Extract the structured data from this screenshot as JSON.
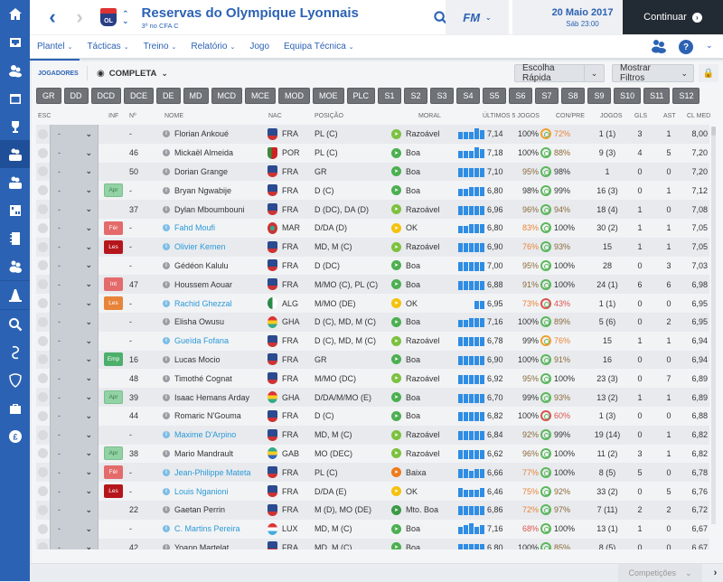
{
  "sidebar": {
    "items": [
      {
        "name": "home-icon",
        "active": false
      },
      {
        "name": "inbox-icon",
        "active": false
      },
      {
        "name": "squad-icon",
        "active": false
      },
      {
        "name": "calendar-icon",
        "active": false
      },
      {
        "name": "trophy-icon",
        "active": false
      },
      {
        "name": "reserves-squad-icon",
        "active": true,
        "label": "RES"
      },
      {
        "name": "u19-squad-icon",
        "active": false,
        "label": "S19"
      },
      {
        "name": "tactics-board-icon",
        "active": false
      },
      {
        "name": "notebook-icon",
        "active": false
      },
      {
        "name": "staff-icon",
        "active": false
      },
      {
        "name": "training-cone-icon",
        "active": false
      },
      {
        "name": "search-icon",
        "active": false
      },
      {
        "name": "transfers-icon",
        "active": false
      },
      {
        "name": "club-shield-icon",
        "active": false
      },
      {
        "name": "briefcase-icon",
        "active": false
      },
      {
        "name": "finances-icon",
        "active": false
      }
    ]
  },
  "header": {
    "club_name": "Reservas do Olympique Lyonnais",
    "club_subtitle": "3º no CFA C",
    "crest_text": "OL",
    "fm_label": "FM",
    "date": "20 Maio 2017",
    "time": "Sáb 23:00",
    "continue_label": "Continuar"
  },
  "subnav": {
    "tabs": [
      {
        "label": "Plantel",
        "dropdown": true,
        "active": true
      },
      {
        "label": "Tácticas",
        "dropdown": true
      },
      {
        "label": "Treino",
        "dropdown": true
      },
      {
        "label": "Relatório",
        "dropdown": true
      },
      {
        "label": "Jogo",
        "dropdown": false
      },
      {
        "label": "Equipa Técnica",
        "dropdown": true
      }
    ]
  },
  "toolbar": {
    "section_label": "JOGADORES",
    "view_label": "COMPLETA",
    "quick_pick_label": "Escolha Rápida",
    "filters_label": "Mostrar Filtros"
  },
  "position_filters": [
    "GR",
    "DD",
    "DCD",
    "DCE",
    "DE",
    "MD",
    "MCD",
    "MCE",
    "MOD",
    "MOE",
    "PLC",
    "S1",
    "S2",
    "S3",
    "S4",
    "S5",
    "S6",
    "S7",
    "S8",
    "S9",
    "S10",
    "S11",
    "S12"
  ],
  "columns": {
    "esc": "ESC",
    "inf": "INF",
    "num": "Nº",
    "nome": "NOME",
    "nac": "NAC",
    "posicao": "POSIÇÃO",
    "moral": "MORAL",
    "ultimos": "ÚLTIMOS 5 JOGOS",
    "conpre": "CON/PRE",
    "jogos": "JOGOS",
    "gls": "GLS",
    "ast": "AST",
    "clmed": "CL MED"
  },
  "players": [
    {
      "sel": "-",
      "inf": "",
      "num": "-",
      "name": "Florian Ankoué",
      "loan": false,
      "nac": "FRA",
      "pos": "PL (C)",
      "moral": "Razoável",
      "mclass": "m-raz",
      "bars": [
        8,
        8,
        8,
        12,
        10
      ],
      "form": "7,14",
      "cond": "100%",
      "condc": "",
      "sharp": "72%",
      "sharpc": "orange",
      "jogos": "1 (1)",
      "gls": "3",
      "ast": "1",
      "clmed": "8,00"
    },
    {
      "sel": "-",
      "inf": "",
      "num": "46",
      "name": "Mickaël Almeida",
      "loan": false,
      "nac": "POR",
      "pos": "PL (C)",
      "moral": "Boa",
      "mclass": "m-good",
      "bars": [
        8,
        8,
        8,
        12,
        10
      ],
      "form": "7,18",
      "cond": "100%",
      "condc": "",
      "sharp": "88%",
      "sharpc": "brown",
      "jogos": "9 (3)",
      "gls": "4",
      "ast": "5",
      "clmed": "7,20"
    },
    {
      "sel": "-",
      "inf": "",
      "num": "50",
      "name": "Dorian Grange",
      "loan": false,
      "nac": "FRA",
      "pos": "GR",
      "moral": "Boa",
      "mclass": "m-good",
      "bars": [
        10,
        10,
        10,
        10,
        10
      ],
      "form": "7,10",
      "cond": "95%",
      "condc": "brown",
      "sharp": "98%",
      "sharpc": "",
      "jogos": "1",
      "gls": "0",
      "ast": "0",
      "clmed": "7,20"
    },
    {
      "sel": "-",
      "inf": "Apr",
      "infc": "b-apr",
      "num": "-",
      "name": "Bryan Ngwabije",
      "loan": false,
      "nac": "FRA",
      "pos": "D (C)",
      "moral": "Boa",
      "mclass": "m-good",
      "bars": [
        8,
        8,
        10,
        10,
        10
      ],
      "form": "6,80",
      "cond": "98%",
      "condc": "",
      "sharp": "99%",
      "sharpc": "",
      "jogos": "16 (3)",
      "gls": "0",
      "ast": "1",
      "clmed": "7,12"
    },
    {
      "sel": "-",
      "inf": "",
      "num": "37",
      "name": "Dylan Mboumbouni",
      "loan": false,
      "nac": "FRA",
      "pos": "D (DC), DA (D)",
      "moral": "Razoável",
      "mclass": "m-raz",
      "bars": [
        10,
        10,
        10,
        10,
        10
      ],
      "form": "6,96",
      "cond": "96%",
      "condc": "brown",
      "sharp": "94%",
      "sharpc": "brown",
      "jogos": "18 (4)",
      "gls": "1",
      "ast": "0",
      "clmed": "7,08"
    },
    {
      "sel": "-",
      "inf": "Fér",
      "infc": "b-fer",
      "num": "-",
      "name": "Fahd Moufi",
      "loan": true,
      "nac": "MAR",
      "pos": "D/DA (D)",
      "moral": "OK",
      "mclass": "m-ok",
      "bars": [
        8,
        8,
        10,
        10,
        10
      ],
      "form": "6,80",
      "cond": "83%",
      "condc": "orange",
      "sharp": "100%",
      "sharpc": "",
      "jogos": "30 (2)",
      "gls": "1",
      "ast": "1",
      "clmed": "7,05"
    },
    {
      "sel": "-",
      "inf": "Les",
      "infc": "b-les",
      "num": "-",
      "name": "Olivier Kemen",
      "loan": true,
      "nac": "FRA",
      "pos": "MD, M (C)",
      "moral": "Razoável",
      "mclass": "m-raz",
      "bars": [
        10,
        10,
        10,
        10,
        10
      ],
      "form": "6,90",
      "cond": "76%",
      "condc": "orange",
      "sharp": "93%",
      "sharpc": "brown",
      "jogos": "15",
      "gls": "1",
      "ast": "1",
      "clmed": "7,05"
    },
    {
      "sel": "-",
      "inf": "",
      "num": "-",
      "name": "Gédéon Kalulu",
      "loan": false,
      "nac": "FRA",
      "pos": "D (DC)",
      "moral": "Boa",
      "mclass": "m-good",
      "bars": [
        10,
        10,
        10,
        10,
        10
      ],
      "form": "7,00",
      "cond": "95%",
      "condc": "brown",
      "sharp": "100%",
      "sharpc": "",
      "jogos": "28",
      "gls": "0",
      "ast": "3",
      "clmed": "7,03"
    },
    {
      "sel": "-",
      "inf": "Int",
      "infc": "b-int",
      "num": "47",
      "name": "Houssem Aouar",
      "loan": false,
      "nac": "FRA",
      "pos": "M/MO (C), PL (C)",
      "moral": "Boa",
      "mclass": "m-good",
      "bars": [
        10,
        10,
        10,
        10,
        10
      ],
      "form": "6,88",
      "cond": "91%",
      "condc": "brown",
      "sharp": "100%",
      "sharpc": "",
      "jogos": "24 (1)",
      "gls": "6",
      "ast": "6",
      "clmed": "6,98"
    },
    {
      "sel": "-",
      "inf": "Les",
      "infc": "b-les2",
      "num": "-",
      "name": "Rachid Ghezzal",
      "loan": true,
      "nac": "ALG",
      "pos": "M/MO (DE)",
      "moral": "OK",
      "mclass": "m-ok",
      "bars": [
        0,
        0,
        0,
        9,
        9
      ],
      "form": "6,95",
      "cond": "73%",
      "condc": "orange",
      "sharp": "43%",
      "sharpc": "red",
      "jogos": "1 (1)",
      "gls": "0",
      "ast": "0",
      "clmed": "6,95"
    },
    {
      "sel": "-",
      "inf": "",
      "num": "-",
      "name": "Elisha Owusu",
      "loan": false,
      "nac": "GHA",
      "pos": "D (C), MD, M (C)",
      "moral": "Boa",
      "mclass": "m-good",
      "bars": [
        8,
        8,
        10,
        10,
        10
      ],
      "form": "7,16",
      "cond": "100%",
      "condc": "",
      "sharp": "89%",
      "sharpc": "brown",
      "jogos": "5 (6)",
      "gls": "0",
      "ast": "2",
      "clmed": "6,95"
    },
    {
      "sel": "-",
      "inf": "",
      "num": "-",
      "name": "Gueïda Fofana",
      "loan": true,
      "nac": "FRA",
      "pos": "D (C), MD, M (C)",
      "moral": "Razoável",
      "mclass": "m-raz",
      "bars": [
        10,
        10,
        10,
        10,
        10
      ],
      "form": "6,78",
      "cond": "99%",
      "condc": "",
      "sharp": "76%",
      "sharpc": "orange",
      "jogos": "15",
      "gls": "1",
      "ast": "1",
      "clmed": "6,94"
    },
    {
      "sel": "-",
      "inf": "Emp",
      "infc": "b-emp",
      "num": "16",
      "name": "Lucas Mocio",
      "loan": false,
      "nac": "FRA",
      "pos": "GR",
      "moral": "Boa",
      "mclass": "m-good",
      "bars": [
        10,
        10,
        10,
        10,
        10
      ],
      "form": "6,90",
      "cond": "100%",
      "condc": "",
      "sharp": "91%",
      "sharpc": "brown",
      "jogos": "16",
      "gls": "0",
      "ast": "0",
      "clmed": "6,94"
    },
    {
      "sel": "-",
      "inf": "",
      "num": "48",
      "name": "Timothé Cognat",
      "loan": false,
      "nac": "FRA",
      "pos": "M/MO (DC)",
      "moral": "Razoável",
      "mclass": "m-raz",
      "bars": [
        10,
        10,
        10,
        10,
        10
      ],
      "form": "6,92",
      "cond": "95%",
      "condc": "brown",
      "sharp": "100%",
      "sharpc": "",
      "jogos": "23 (3)",
      "gls": "0",
      "ast": "7",
      "clmed": "6,89"
    },
    {
      "sel": "-",
      "inf": "Apr",
      "infc": "b-apr",
      "num": "39",
      "name": "Isaac Hemans Arday",
      "loan": false,
      "nac": "GHA",
      "pos": "D/DA/M/MO (E)",
      "moral": "Boa",
      "mclass": "m-good",
      "bars": [
        10,
        10,
        10,
        10,
        10
      ],
      "form": "6,70",
      "cond": "99%",
      "condc": "",
      "sharp": "93%",
      "sharpc": "brown",
      "jogos": "13 (2)",
      "gls": "1",
      "ast": "1",
      "clmed": "6,89"
    },
    {
      "sel": "-",
      "inf": "",
      "num": "44",
      "name": "Romaric N'Gouma",
      "loan": false,
      "nac": "FRA",
      "pos": "D (C)",
      "moral": "Boa",
      "mclass": "m-good",
      "bars": [
        10,
        10,
        10,
        10,
        10
      ],
      "form": "6,82",
      "cond": "100%",
      "condc": "",
      "sharp": "60%",
      "sharpc": "red",
      "jogos": "1 (3)",
      "gls": "0",
      "ast": "0",
      "clmed": "6,88"
    },
    {
      "sel": "-",
      "inf": "",
      "num": "-",
      "name": "Maxime D'Arpino",
      "loan": true,
      "nac": "FRA",
      "pos": "MD, M (C)",
      "moral": "Razoável",
      "mclass": "m-raz",
      "bars": [
        10,
        10,
        10,
        10,
        10
      ],
      "form": "6,84",
      "cond": "92%",
      "condc": "brown",
      "sharp": "99%",
      "sharpc": "",
      "jogos": "19 (14)",
      "gls": "0",
      "ast": "1",
      "clmed": "6,82"
    },
    {
      "sel": "-",
      "inf": "Apr",
      "infc": "b-apr",
      "num": "38",
      "name": "Mario Mandrault",
      "loan": false,
      "nac": "GAB",
      "pos": "MO (DEC)",
      "moral": "Razoável",
      "mclass": "m-raz",
      "bars": [
        10,
        10,
        10,
        10,
        10
      ],
      "form": "6,62",
      "cond": "96%",
      "condc": "brown",
      "sharp": "100%",
      "sharpc": "",
      "jogos": "11 (2)",
      "gls": "3",
      "ast": "1",
      "clmed": "6,82"
    },
    {
      "sel": "-",
      "inf": "Fér",
      "infc": "b-fer",
      "num": "-",
      "name": "Jean-Philippe Mateta",
      "loan": true,
      "nac": "FRA",
      "pos": "PL (C)",
      "moral": "Baixa",
      "mclass": "m-low",
      "bars": [
        10,
        10,
        8,
        10,
        10
      ],
      "form": "6,66",
      "cond": "77%",
      "condc": "orange",
      "sharp": "100%",
      "sharpc": "",
      "jogos": "8 (5)",
      "gls": "5",
      "ast": "0",
      "clmed": "6,78"
    },
    {
      "sel": "-",
      "inf": "Les",
      "infc": "b-les",
      "num": "-",
      "name": "Louis Nganioni",
      "loan": true,
      "nac": "FRA",
      "pos": "D/DA (E)",
      "moral": "OK",
      "mclass": "m-ok",
      "bars": [
        10,
        8,
        8,
        8,
        10
      ],
      "form": "6,46",
      "cond": "75%",
      "condc": "orange",
      "sharp": "92%",
      "sharpc": "brown",
      "jogos": "33 (2)",
      "gls": "0",
      "ast": "5",
      "clmed": "6,76"
    },
    {
      "sel": "-",
      "inf": "",
      "num": "22",
      "name": "Gaetan Perrin",
      "loan": false,
      "nac": "FRA",
      "pos": "M (D), MO (DE)",
      "moral": "Mto. Boa",
      "mclass": "m-vgood",
      "bars": [
        10,
        10,
        10,
        10,
        10
      ],
      "form": "6,86",
      "cond": "72%",
      "condc": "orange",
      "sharp": "97%",
      "sharpc": "brown",
      "jogos": "7 (11)",
      "gls": "2",
      "ast": "2",
      "clmed": "6,72"
    },
    {
      "sel": "-",
      "inf": "",
      "num": "-",
      "name": "C. Martins Pereira",
      "loan": true,
      "nac": "LUX",
      "pos": "MD, M (C)",
      "moral": "Boa",
      "mclass": "m-good",
      "bars": [
        8,
        10,
        12,
        8,
        10
      ],
      "form": "7,16",
      "cond": "68%",
      "condc": "red",
      "sharp": "100%",
      "sharpc": "",
      "jogos": "13 (1)",
      "gls": "1",
      "ast": "0",
      "clmed": "6,67"
    },
    {
      "sel": "-",
      "inf": "",
      "num": "42",
      "name": "Yoann Martelat",
      "loan": false,
      "nac": "FRA",
      "pos": "MD, M (C)",
      "moral": "Boa",
      "mclass": "m-good",
      "bars": [
        10,
        10,
        10,
        10,
        10
      ],
      "form": "6,80",
      "cond": "100%",
      "condc": "",
      "sharp": "85%",
      "sharpc": "brown",
      "jogos": "8 (5)",
      "gls": "0",
      "ast": "0",
      "clmed": "6,67"
    }
  ],
  "footer": {
    "competitions_label": "Competições"
  },
  "colors": {
    "accent": "#2c62b4",
    "continue_bg": "#222a33",
    "form_bar": "#2f8de4",
    "loan_name": "#2b9ad8"
  }
}
